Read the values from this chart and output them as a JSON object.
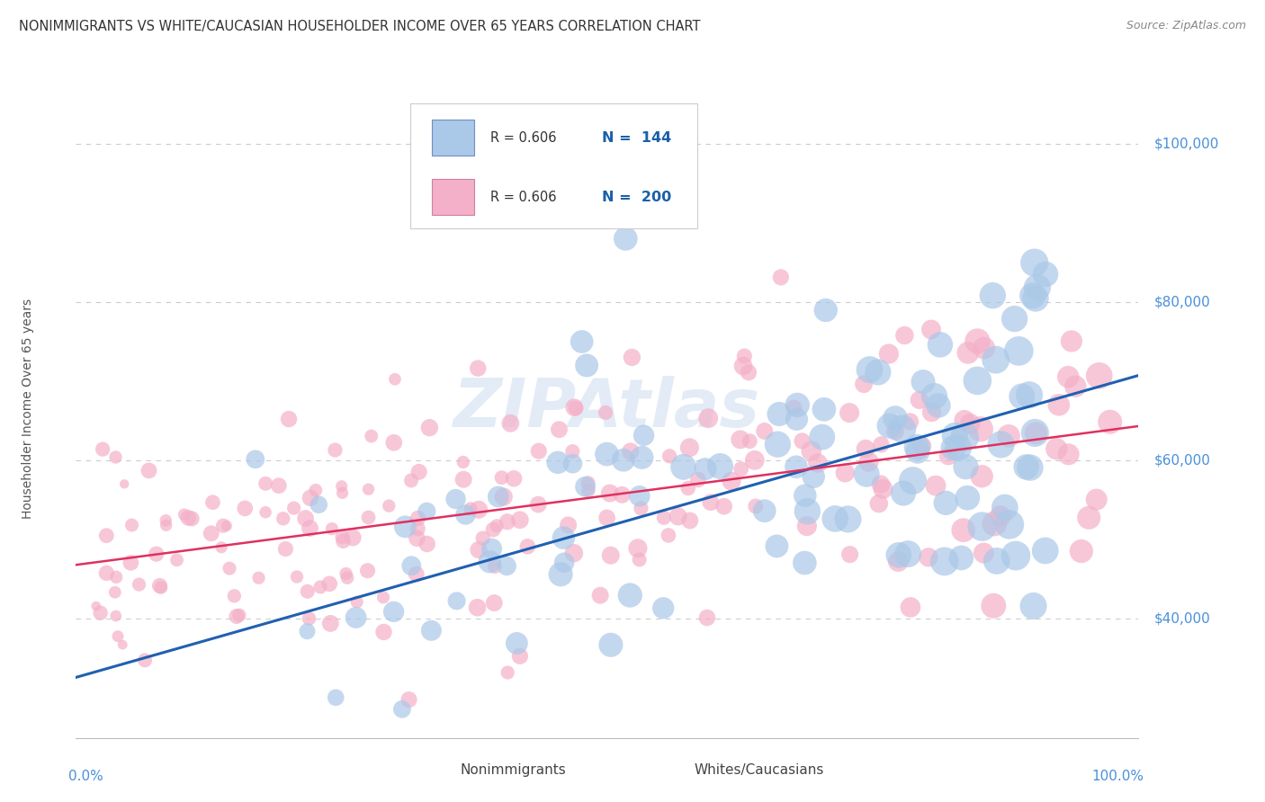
{
  "title": "NONIMMIGRANTS VS WHITE/CAUCASIAN HOUSEHOLDER INCOME OVER 65 YEARS CORRELATION CHART",
  "source": "Source: ZipAtlas.com",
  "ylabel": "Householder Income Over 65 years",
  "ytick_labels": [
    "$40,000",
    "$60,000",
    "$80,000",
    "$100,000"
  ],
  "ytick_values": [
    40000,
    60000,
    80000,
    100000
  ],
  "ymin": 25000,
  "ymax": 108000,
  "xmin": -0.01,
  "xmax": 1.02,
  "legend_r1": "R = 0.606",
  "legend_n1": "N =  144",
  "legend_r2": "R = 0.606",
  "legend_n2": "N =  200",
  "blue_scatter_color": "#aac8e8",
  "pink_scatter_color": "#f4b0c8",
  "watermark": "ZIPAtlas",
  "watermark_color": "#d0dff0",
  "title_color": "#333333",
  "axis_label_color": "#4a90d9",
  "grid_color": "#cccccc",
  "blue_line_color": "#2060b0",
  "pink_line_color": "#e03060",
  "blue_legend_color": "#aac8e8",
  "pink_legend_color": "#f4b0c8",
  "blue_legend_edge": "#7090c0",
  "pink_legend_edge": "#d080a0",
  "blue_intercept": 33000,
  "blue_slope": 37000,
  "pink_intercept": 47000,
  "pink_slope": 17000
}
